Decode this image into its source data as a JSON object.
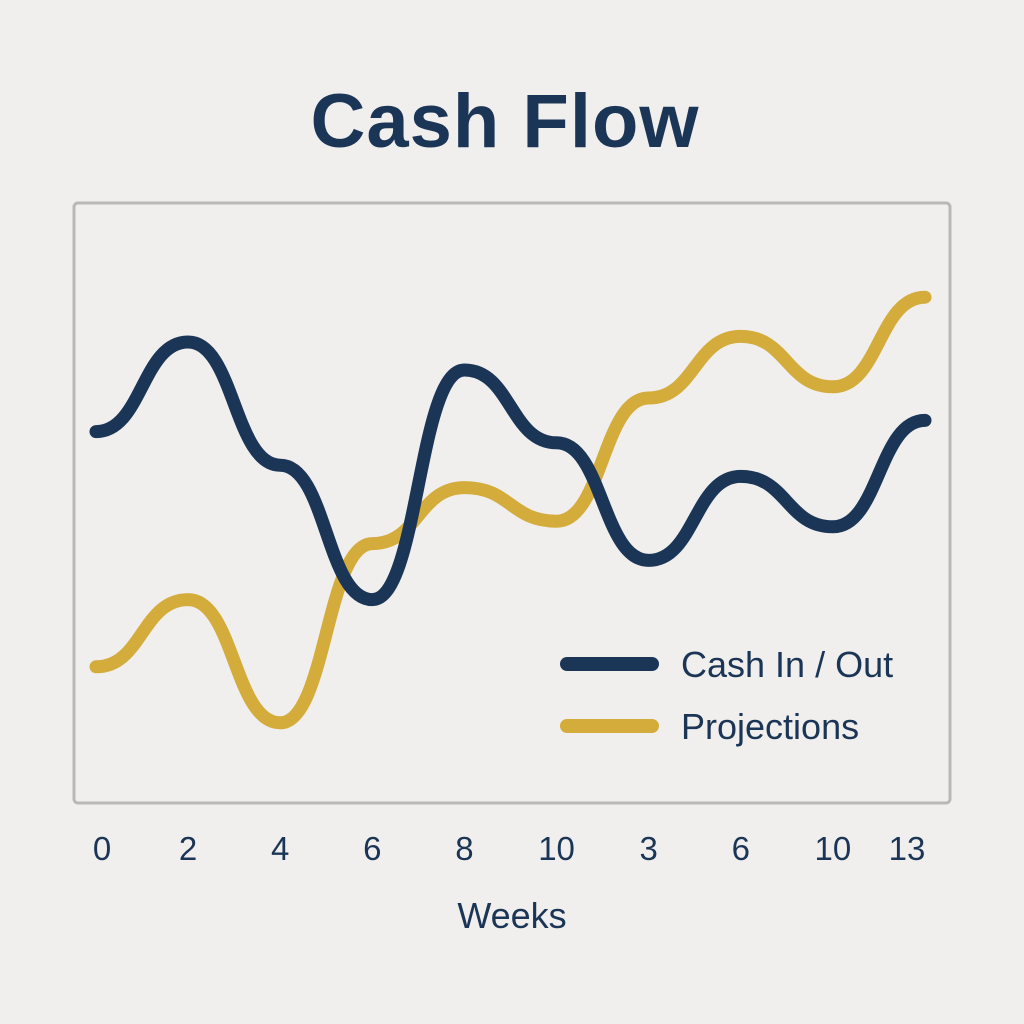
{
  "chart_data": {
    "type": "line",
    "title": "Cash Flow",
    "xlabel": "Weeks",
    "ylabel": "",
    "categories": [
      "0",
      "2",
      "4",
      "6",
      "8",
      "10",
      "3",
      "6",
      "10",
      "13"
    ],
    "grid": false,
    "legend_position": "bottom-right",
    "ylim": [
      0,
      100
    ],
    "series": [
      {
        "name": "Cash In / Out",
        "color": "#1b3556",
        "values": [
          64,
          80,
          58,
          34,
          75,
          62,
          41,
          56,
          47,
          66
        ]
      },
      {
        "name": "Projections",
        "color": "#d4ac3c",
        "values": [
          22,
          34,
          12,
          44,
          54,
          48,
          70,
          81,
          72,
          88
        ]
      }
    ]
  }
}
